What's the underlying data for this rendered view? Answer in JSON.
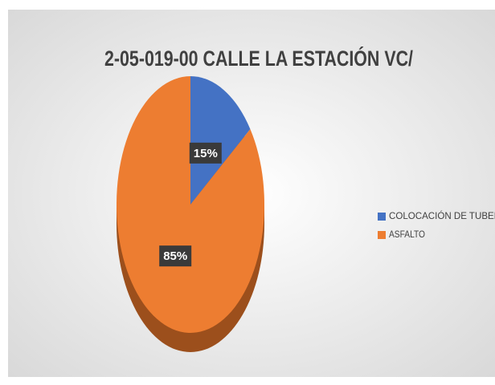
{
  "chart_data": {
    "type": "pie",
    "title": "2-05-019-00 CALLE LA ESTACIÓN VC/",
    "categories": [
      "COLOCACIÓN DE TUBERIA",
      "ASFALTO"
    ],
    "values": [
      15,
      85
    ],
    "value_labels": [
      "15%",
      "85%"
    ],
    "colors": [
      "#4472c4",
      "#ed7d31"
    ],
    "legend": "right"
  }
}
